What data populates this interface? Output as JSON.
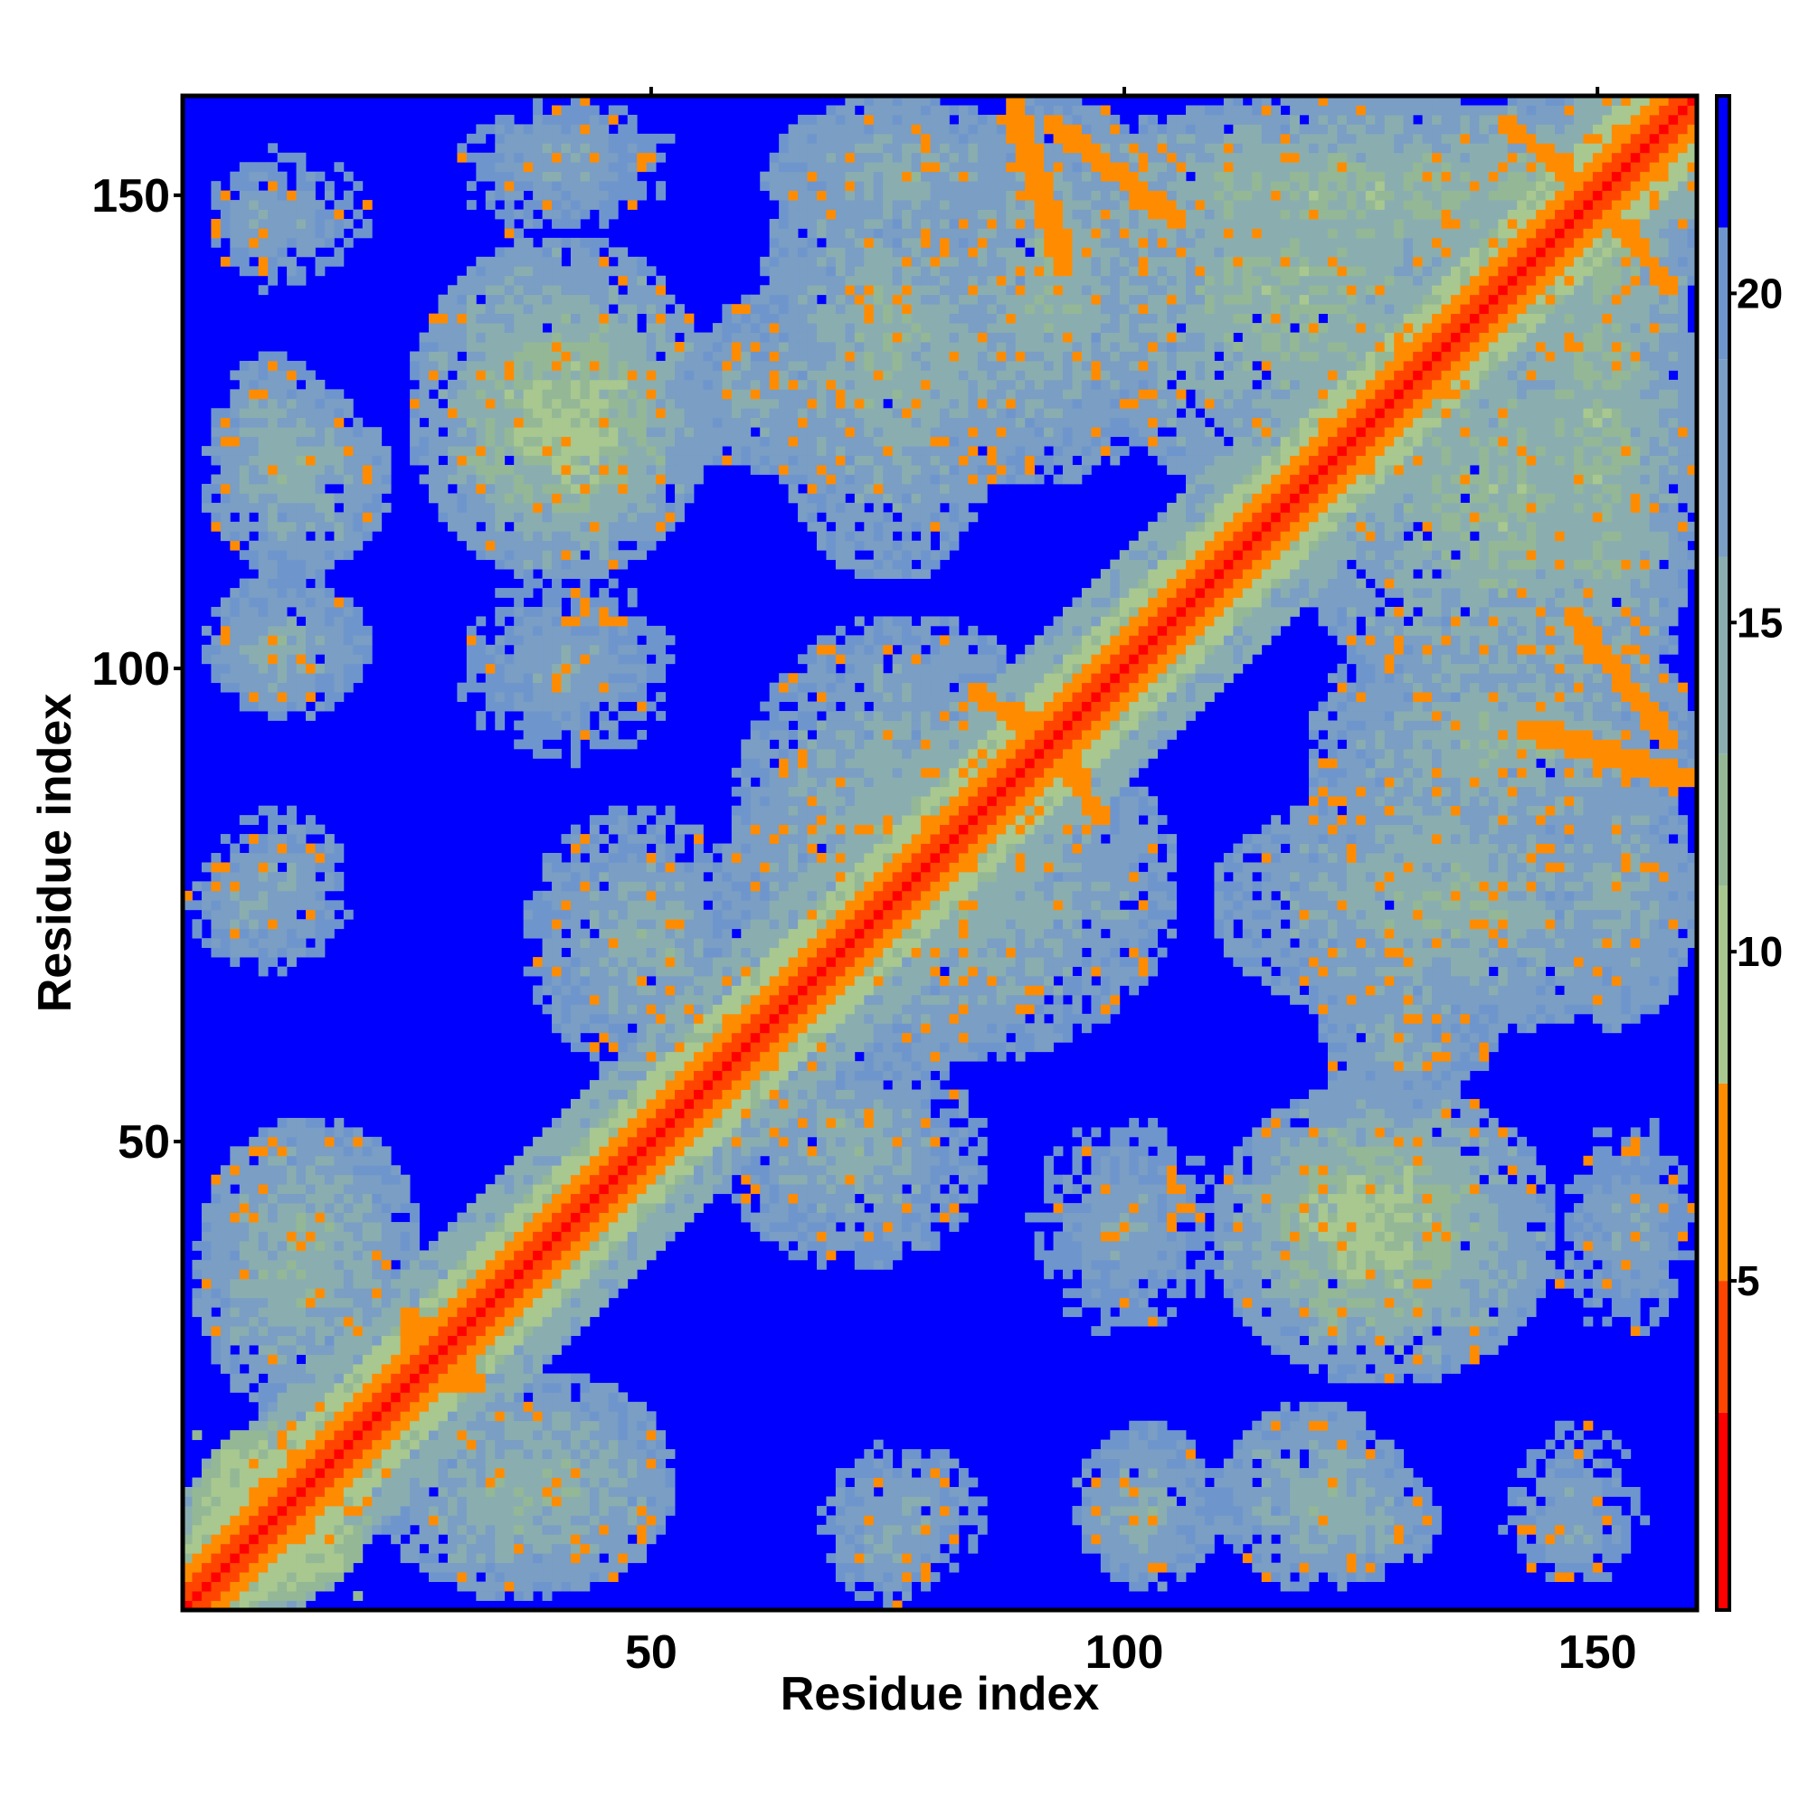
{
  "chart_data": {
    "type": "heatmap",
    "title": "",
    "xlabel": "Residue index",
    "ylabel": "Residue index",
    "x_range": [
      1,
      160
    ],
    "y_range": [
      1,
      160
    ],
    "x_ticks": [
      50,
      100,
      150
    ],
    "y_ticks": [
      50,
      100,
      150
    ],
    "colorbar": {
      "range": [
        0,
        23
      ],
      "ticks": [
        5,
        10,
        15,
        20
      ],
      "bands": [
        {
          "from": 0,
          "to": 3,
          "color": "#ff0000"
        },
        {
          "from": 3,
          "to": 5,
          "color": "#ff4500"
        },
        {
          "from": 5,
          "to": 8,
          "color": "#ff8c00"
        },
        {
          "from": 8,
          "to": 11,
          "color": "#a8c890"
        },
        {
          "from": 11,
          "to": 13,
          "color": "#94b896"
        },
        {
          "from": 13,
          "to": 16,
          "color": "#8aaeb0"
        },
        {
          "from": 16,
          "to": 19,
          "color": "#7a9ec4"
        },
        {
          "from": 19,
          "to": 21,
          "color": "#6f96cc"
        },
        {
          "from": 21,
          "to": 23,
          "color": "#0000ff"
        }
      ]
    },
    "background_value_color": "#0000ff",
    "description_note": "Pairwise residue distance map; values on colorbar; symmetric about the diagonal",
    "regions": [
      {
        "x": [
          1,
          160
        ],
        "y": [
          1,
          160
        ],
        "kind": "diagonal",
        "value": 1
      },
      {
        "x": [
          2,
          20
        ],
        "y": [
          2,
          20
        ],
        "kind": "diag_band",
        "value": 7
      },
      {
        "x": [
          4,
          13
        ],
        "y": [
          142,
          154
        ],
        "kind": "block",
        "value": 16
      },
      {
        "x": [
          4,
          16
        ],
        "y": [
          116,
          133
        ],
        "kind": "block",
        "value": 14
      },
      {
        "x": [
          4,
          14
        ],
        "y": [
          96,
          107
        ],
        "kind": "block",
        "value": 14
      },
      {
        "x": [
          1,
          14
        ],
        "y": [
          69,
          80
        ],
        "kind": "block",
        "value": 15
      },
      {
        "x": 2,
        "y": 19,
        "kind": "block",
        "value": 13
      },
      {
        "x": [
          30,
          52
        ],
        "y": [
          114,
          138
        ],
        "kind": "block",
        "value": 9
      },
      {
        "x": [
          54,
          67
        ],
        "y": [
          121,
          137
        ],
        "kind": "block",
        "value": 14
      },
      {
        "x": [
          62,
          88
        ],
        "y": [
          110,
          160
        ],
        "kind": "block",
        "value": 13
      },
      {
        "x": [
          80,
          105
        ],
        "y": [
          120,
          160
        ],
        "kind": "block",
        "value": 13
      },
      {
        "x": [
          90,
          160
        ],
        "y": [
          140,
          160
        ],
        "kind": "block",
        "value": 12
      },
      {
        "x": [
          140,
          160
        ],
        "y": [
          130,
          160
        ],
        "kind": "block",
        "value": 12
      },
      {
        "x": [
          118,
          160
        ],
        "y": [
          96,
          140
        ],
        "kind": "block",
        "value": 12
      },
      {
        "x": [
          118,
          145
        ],
        "y": [
          56,
          96
        ],
        "kind": "block",
        "value": 14
      },
      {
        "x": [
          110,
          145
        ],
        "y": [
          25,
          56
        ],
        "kind": "block",
        "value": 12
      },
      {
        "x": [
          145,
          160
        ],
        "y": [
          62,
          92
        ],
        "kind": "block",
        "value": 14
      },
      {
        "x": [
          59,
          95
        ],
        "y": [
          58,
          105
        ],
        "kind": "block",
        "value": 13
      },
      {
        "x": [
          37,
          60
        ],
        "y": [
          58,
          85
        ],
        "kind": "block",
        "value": 14
      },
      {
        "x": [
          60,
          80
        ],
        "y": [
          45,
          58
        ],
        "kind": "block",
        "value": 14
      },
      {
        "x": [
          2,
          22
        ],
        "y": [
          22,
          50
        ],
        "kind": "block",
        "value": 13
      },
      {
        "x": [
          28,
          52
        ],
        "y": [
          3,
          25
        ],
        "kind": "block",
        "value": 13
      },
      {
        "x": [
          68,
          85
        ],
        "y": [
          3,
          18
        ],
        "kind": "block",
        "value": 15
      },
      {
        "x": [
          95,
          110
        ],
        "y": [
          3,
          20
        ],
        "kind": "block",
        "value": 14
      },
      {
        "x": [
          110,
          130
        ],
        "y": [
          3,
          22
        ],
        "kind": "block",
        "value": 13
      },
      {
        "x": [
          140,
          155
        ],
        "y": [
          3,
          20
        ],
        "kind": "block",
        "value": 16
      },
      {
        "x": [
          145,
          160
        ],
        "y": [
          30,
          52
        ],
        "kind": "block",
        "value": 16
      },
      {
        "x": [
          90,
          110
        ],
        "y": [
          30,
          52
        ],
        "kind": "block",
        "value": 16
      },
      {
        "x": [
          30,
          52
        ],
        "y": [
          95,
          108
        ],
        "kind": "block",
        "value": 16
      },
      {
        "x": [
          30,
          52
        ],
        "y": [
          150,
          160
        ],
        "kind": "block",
        "value": 16
      },
      {
        "x": [
          84,
          96
        ],
        "y": [
          88,
          98
        ],
        "kind": "cross",
        "value": 5
      },
      {
        "x": [
          88,
          94
        ],
        "y": [
          142,
          160
        ],
        "kind": "cross",
        "value": 5
      },
      {
        "x": [
          140,
          150
        ],
        "y": [
          150,
          158
        ],
        "kind": "cross",
        "value": 5
      },
      {
        "x": [
          147,
          158
        ],
        "y": [
          92,
          106
        ],
        "kind": "cross",
        "value": 5
      },
      {
        "x": [
          24,
          30
        ],
        "y": [
          24,
          32
        ],
        "kind": "cross",
        "value": 6
      }
    ]
  }
}
